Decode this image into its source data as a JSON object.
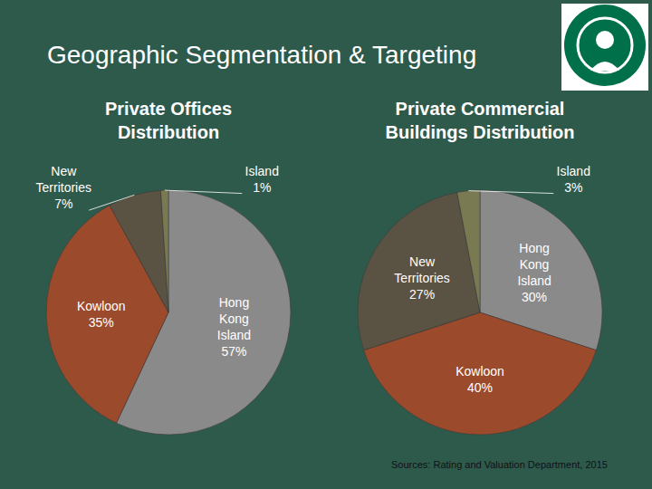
{
  "title": "Geographic Segmentation & Targeting",
  "source": "Sources: Rating and Valuation Department, 2015",
  "chart_data": [
    {
      "type": "pie",
      "title": "Private Offices Distribution",
      "categories": [
        "Hong Kong Island",
        "Kowloon",
        "New Territories",
        "Island"
      ],
      "values": [
        57,
        35,
        7,
        1
      ],
      "value_labels": [
        "57%",
        "35%",
        "7%",
        "1%"
      ],
      "data_labels": true,
      "colors": [
        "#8a8a8a",
        "#9b4a2b",
        "#5a5242",
        "#7a7a52"
      ]
    },
    {
      "type": "pie",
      "title": "Private Commercial Buildings Distribution",
      "categories": [
        "Hong Kong Island",
        "Kowloon",
        "New Territories",
        "Island"
      ],
      "values": [
        30,
        40,
        27,
        3
      ],
      "value_labels": [
        "30%",
        "40%",
        "27%",
        "3%"
      ],
      "data_labels": true,
      "colors": [
        "#8a8a8a",
        "#9b4a2b",
        "#5a5242",
        "#7a7a52"
      ]
    }
  ]
}
